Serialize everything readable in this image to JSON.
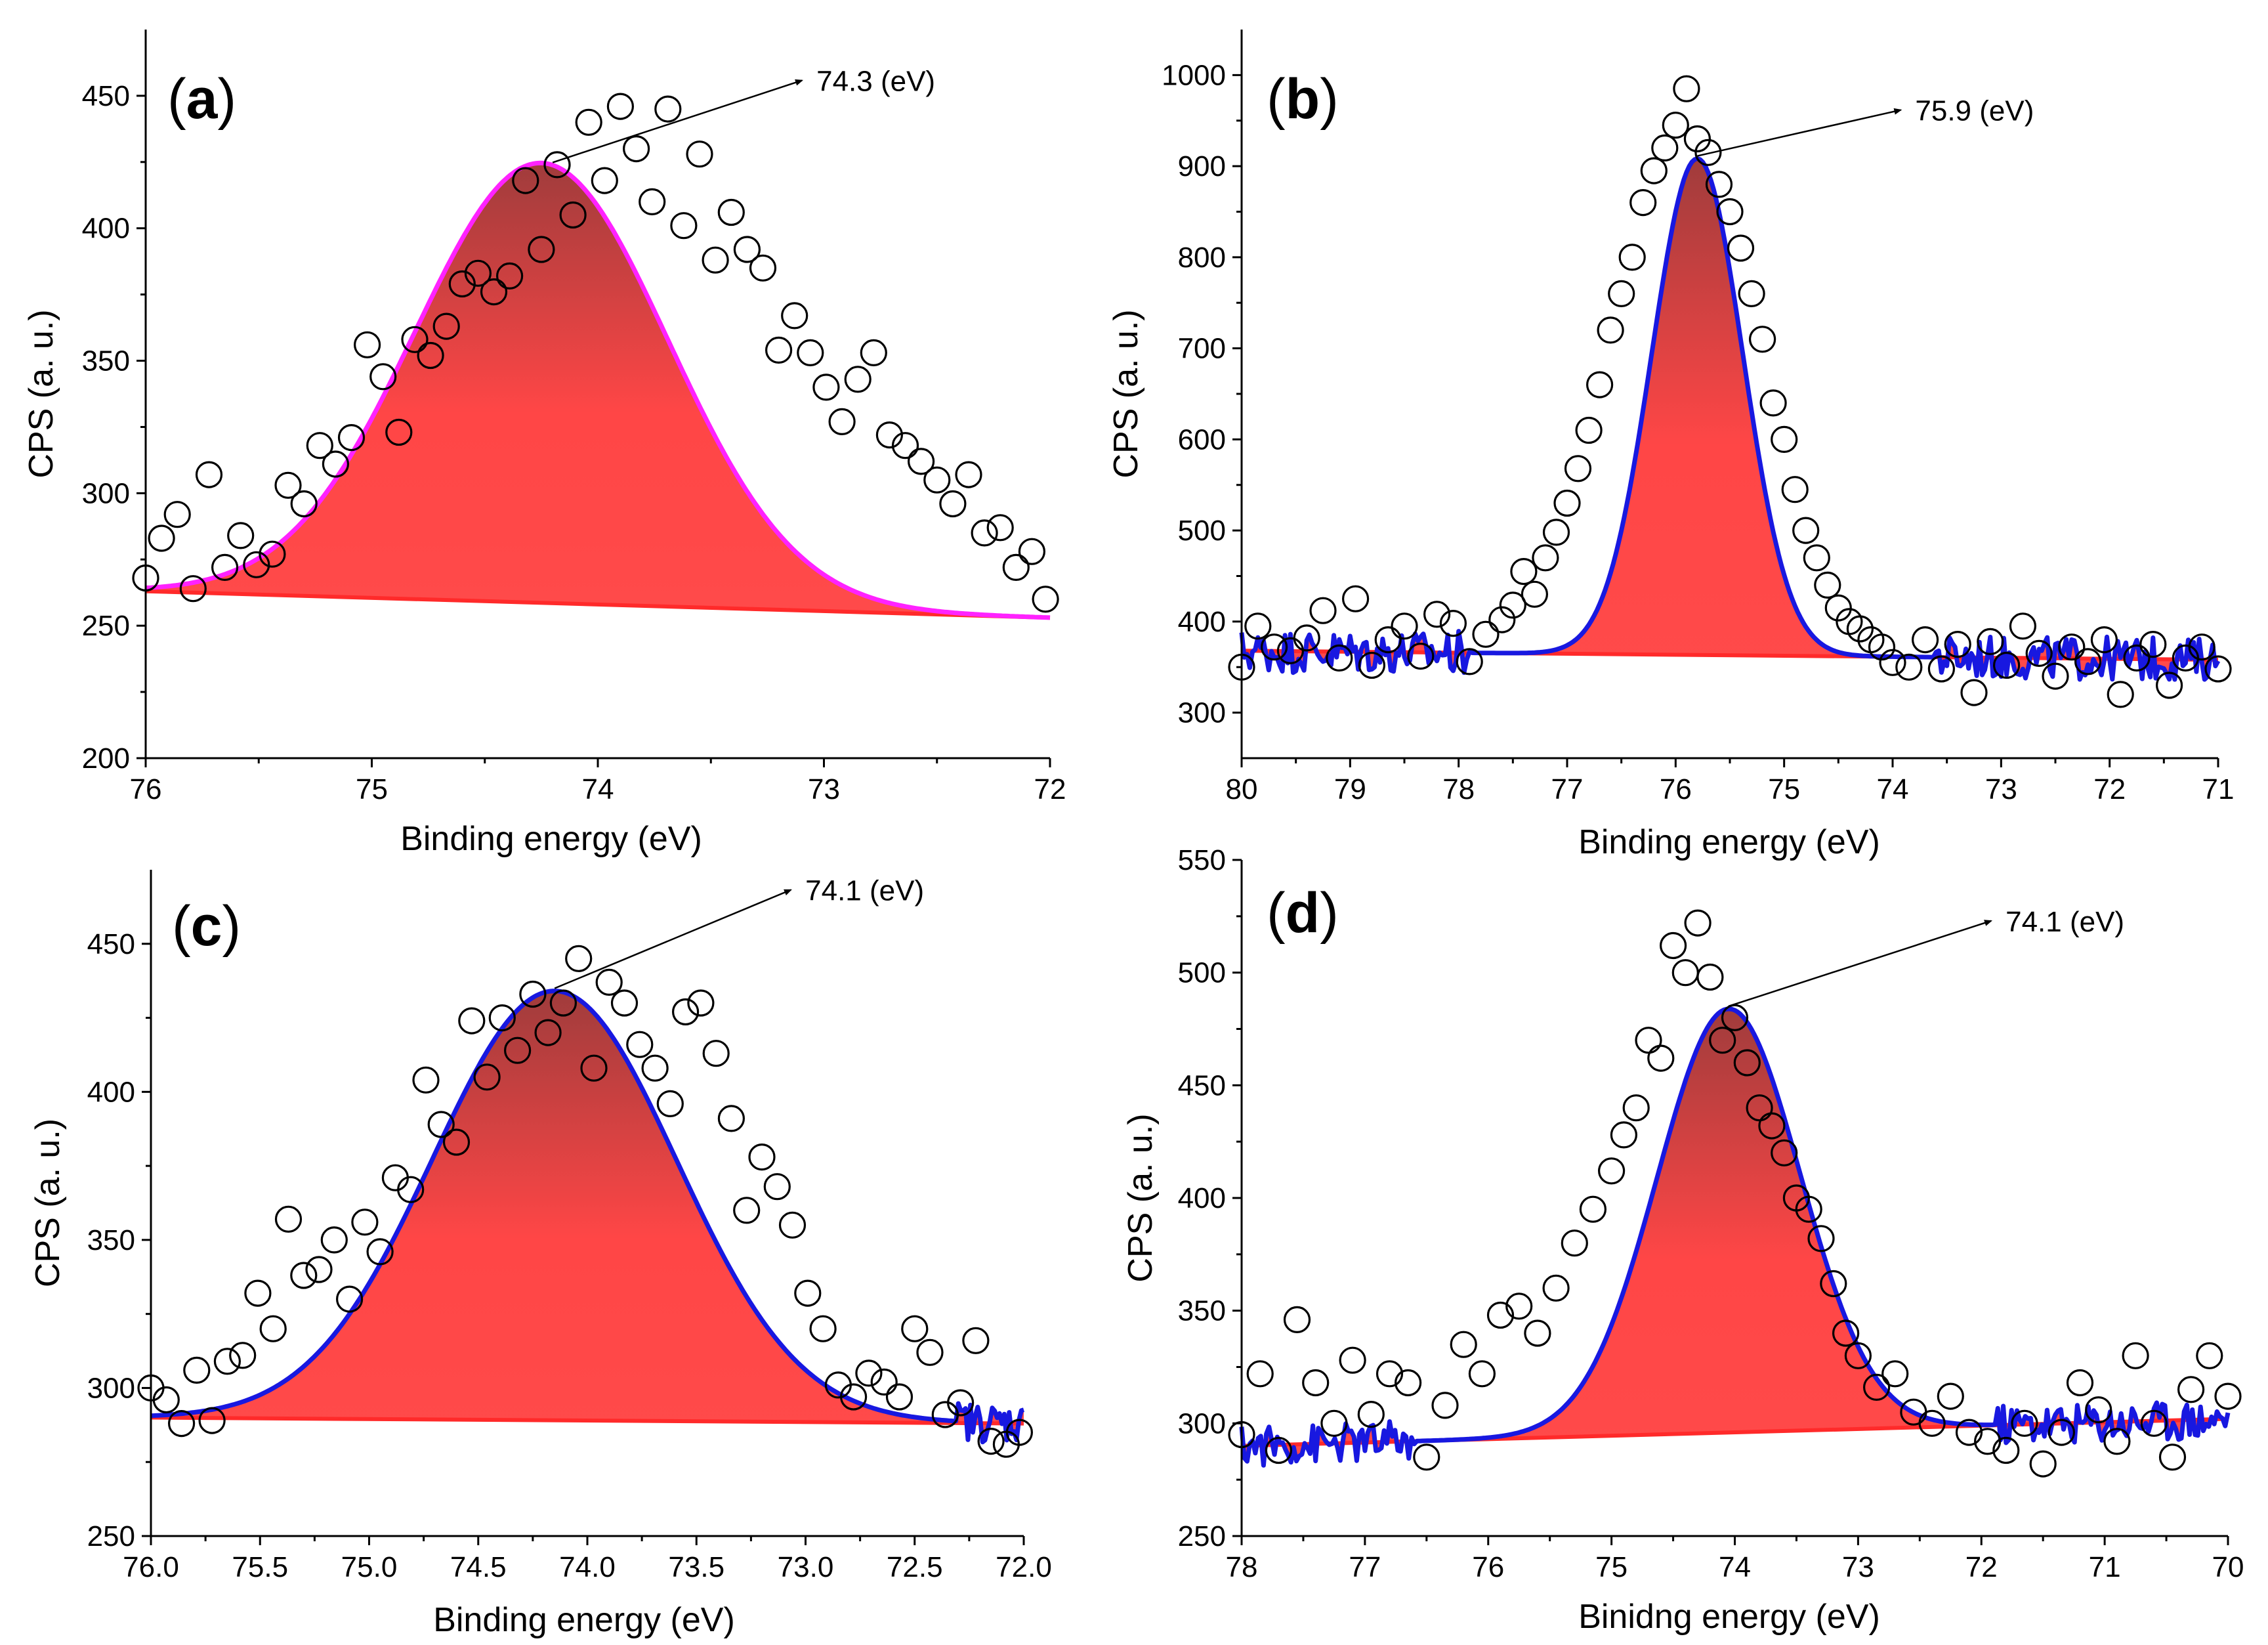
{
  "figure": {
    "panels": [
      "(a)",
      "(b)",
      "(c)",
      "(d)"
    ]
  },
  "colors": {
    "fill_top": "#a03c3c",
    "fill_bottom": "#ff4a4a",
    "baseline": "#ff2a2a",
    "fit_a": "#ff22ff",
    "fit_bcd": "#1818e0",
    "marker": "#000000"
  },
  "chart_data": [
    {
      "type": "scatter",
      "panel": "a",
      "label_letter": "a",
      "title": "",
      "xlabel": "Binding energy (eV)",
      "ylabel": "CPS (a. u.)",
      "xlim": [
        76,
        72
      ],
      "ylim": [
        200,
        475
      ],
      "xticks": [
        76,
        75,
        74,
        73,
        72
      ],
      "xtick_labels": [
        "76",
        "75",
        "74",
        "73",
        "72"
      ],
      "yticks": [
        200,
        250,
        300,
        350,
        400,
        450
      ],
      "ytick_labels": [
        "200",
        "250",
        "300",
        "350",
        "400",
        "450"
      ],
      "annotation": "74.3 (eV)",
      "annotation_x": 74.2,
      "fit_color_key": "fit_a",
      "fit": {
        "center": 74.25,
        "sigma": 0.56,
        "amplitude": 166,
        "baseline_start": 263,
        "baseline_end": 253,
        "noise_until": null,
        "noise_from": null
      },
      "series": [
        {
          "name": "measured",
          "x": [
            76.0,
            75.93,
            75.86,
            75.79,
            75.72,
            75.65,
            75.58,
            75.51,
            75.44,
            75.37,
            75.3,
            75.23,
            75.16,
            75.09,
            75.02,
            74.95,
            74.88,
            74.81,
            74.74,
            74.67,
            74.6,
            74.53,
            74.46,
            74.39,
            74.32,
            74.25,
            74.18,
            74.11,
            74.04,
            73.97,
            73.9,
            73.83,
            73.76,
            73.69,
            73.62,
            73.55,
            73.48,
            73.41,
            73.34,
            73.27,
            73.2,
            73.13,
            73.06,
            72.99,
            72.92,
            72.85,
            72.78,
            72.71,
            72.64,
            72.57,
            72.5,
            72.43,
            72.36,
            72.29,
            72.22,
            72.15,
            72.08,
            72.02
          ],
          "y": [
            268,
            283,
            292,
            264,
            307,
            272,
            284,
            273,
            277,
            303,
            296,
            318,
            311,
            321,
            356,
            344,
            323,
            358,
            352,
            363,
            379,
            383,
            376,
            382,
            418,
            392,
            424,
            405,
            440,
            418,
            446,
            430,
            410,
            445,
            401,
            428,
            388,
            406,
            392,
            385,
            354,
            367,
            353,
            340,
            327,
            343,
            353,
            322,
            318,
            312,
            305,
            296,
            307,
            285,
            287,
            272,
            278,
            260
          ]
        }
      ]
    },
    {
      "type": "scatter",
      "panel": "b",
      "label_letter": "b",
      "title": "",
      "xlabel": "Binding energy (eV)",
      "ylabel": "CPS (a. u.)",
      "xlim": [
        80,
        71
      ],
      "ylim": [
        250,
        1050
      ],
      "xticks": [
        80,
        79,
        78,
        77,
        76,
        75,
        74,
        73,
        72,
        71
      ],
      "xtick_labels": [
        "80",
        "79",
        "78",
        "77",
        "76",
        "75",
        "74",
        "73",
        "72",
        "71"
      ],
      "yticks": [
        300,
        400,
        500,
        600,
        700,
        800,
        900,
        1000
      ],
      "ytick_labels": [
        "300",
        "400",
        "500",
        "600",
        "700",
        "800",
        "900",
        "1000"
      ],
      "annotation": "75.9 (eV)",
      "annotation_x": 75.8,
      "fit_color_key": "fit_bcd",
      "fit": {
        "center": 75.8,
        "sigma": 0.42,
        "amplitude": 545,
        "baseline_start": 368,
        "baseline_end": 358,
        "noise_until": 77.9,
        "noise_from": 73.6
      },
      "series": [
        {
          "name": "measured",
          "x": [
            80.0,
            79.85,
            79.7,
            79.55,
            79.4,
            79.25,
            79.1,
            78.95,
            78.8,
            78.65,
            78.5,
            78.35,
            78.2,
            78.05,
            77.9,
            77.75,
            77.6,
            77.5,
            77.4,
            77.3,
            77.2,
            77.1,
            77.0,
            76.9,
            76.8,
            76.7,
            76.6,
            76.5,
            76.4,
            76.3,
            76.2,
            76.1,
            76.0,
            75.9,
            75.8,
            75.7,
            75.6,
            75.5,
            75.4,
            75.3,
            75.2,
            75.1,
            75.0,
            74.9,
            74.8,
            74.7,
            74.6,
            74.5,
            74.4,
            74.3,
            74.2,
            74.1,
            74.0,
            73.85,
            73.7,
            73.55,
            73.4,
            73.25,
            73.1,
            72.95,
            72.8,
            72.65,
            72.5,
            72.35,
            72.2,
            72.05,
            71.9,
            71.75,
            71.6,
            71.45,
            71.3,
            71.15,
            71.0
          ],
          "y": [
            350,
            395,
            372,
            368,
            382,
            412,
            360,
            425,
            352,
            380,
            395,
            362,
            408,
            398,
            356,
            386,
            402,
            418,
            455,
            430,
            470,
            498,
            530,
            568,
            610,
            660,
            720,
            760,
            800,
            860,
            895,
            920,
            945,
            985,
            930,
            915,
            880,
            850,
            810,
            760,
            710,
            640,
            600,
            545,
            500,
            470,
            440,
            415,
            400,
            392,
            380,
            372,
            355,
            350,
            380,
            348,
            375,
            322,
            378,
            352,
            395,
            365,
            340,
            372,
            356,
            380,
            320,
            360,
            375,
            330,
            360,
            372,
            348
          ]
        }
      ]
    },
    {
      "type": "scatter",
      "panel": "c",
      "label_letter": "c",
      "title": "",
      "xlabel": "Binding energy (eV)",
      "ylabel": "CPS (a. u.)",
      "xlim": [
        76,
        72
      ],
      "ylim": [
        250,
        475
      ],
      "xticks": [
        76,
        75.5,
        75,
        74.5,
        74,
        73.5,
        73,
        72.5,
        72
      ],
      "xtick_labels": [
        "76.0",
        "75.5",
        "75.0",
        "74.5",
        "74.0",
        "73.5",
        "73.0",
        "72.5",
        "72.0"
      ],
      "yticks": [
        250,
        300,
        350,
        400,
        450
      ],
      "ytick_labels": [
        "250",
        "300",
        "350",
        "400",
        "450"
      ],
      "annotation": "74.1 (eV)",
      "annotation_x": 74.15,
      "fit_color_key": "fit_bcd",
      "fit": {
        "center": 74.15,
        "sigma": 0.56,
        "amplitude": 145,
        "baseline_start": 290,
        "baseline_end": 288,
        "noise_until": null,
        "noise_from": 72.3
      },
      "series": [
        {
          "name": "measured",
          "x": [
            76.0,
            75.93,
            75.86,
            75.79,
            75.72,
            75.65,
            75.58,
            75.51,
            75.44,
            75.37,
            75.3,
            75.23,
            75.16,
            75.09,
            75.02,
            74.95,
            74.88,
            74.81,
            74.74,
            74.67,
            74.6,
            74.53,
            74.46,
            74.39,
            74.32,
            74.25,
            74.18,
            74.11,
            74.04,
            73.97,
            73.9,
            73.83,
            73.76,
            73.69,
            73.62,
            73.55,
            73.48,
            73.41,
            73.34,
            73.27,
            73.2,
            73.13,
            73.06,
            72.99,
            72.92,
            72.85,
            72.78,
            72.71,
            72.64,
            72.57,
            72.5,
            72.43,
            72.36,
            72.29,
            72.22,
            72.15,
            72.08,
            72.02
          ],
          "y": [
            300,
            296,
            288,
            306,
            289,
            309,
            311,
            332,
            320,
            357,
            338,
            340,
            350,
            330,
            356,
            346,
            371,
            367,
            404,
            389,
            383,
            424,
            405,
            425,
            414,
            433,
            420,
            430,
            445,
            408,
            437,
            430,
            416,
            408,
            396,
            427,
            430,
            413,
            391,
            360,
            378,
            368,
            355,
            332,
            320,
            301,
            297,
            305,
            302,
            297,
            320,
            312,
            291,
            295,
            316,
            282,
            281,
            285
          ]
        }
      ]
    },
    {
      "type": "scatter",
      "panel": "d",
      "label_letter": "d",
      "title": "",
      "xlabel": "Binidng energy (eV)",
      "ylabel": "CPS (a. u.)",
      "xlim": [
        78,
        70
      ],
      "ylim": [
        250,
        550
      ],
      "xticks": [
        78,
        77,
        76,
        75,
        74,
        73,
        72,
        71,
        70
      ],
      "xtick_labels": [
        "78",
        "77",
        "76",
        "75",
        "74",
        "73",
        "72",
        "71",
        "70"
      ],
      "yticks": [
        250,
        300,
        350,
        400,
        450,
        500,
        550
      ],
      "ytick_labels": [
        "250",
        "300",
        "350",
        "400",
        "450",
        "500",
        "550"
      ],
      "annotation": "74.1 (eV)",
      "annotation_x": 74.05,
      "fit_color_key": "fit_bcd",
      "fit": {
        "center": 74.05,
        "sigma": 0.58,
        "amplitude": 188,
        "baseline_start": 290,
        "baseline_end": 302,
        "noise_until": 76.6,
        "noise_from": 71.9
      },
      "series": [
        {
          "name": "measured",
          "x": [
            78.0,
            77.85,
            77.7,
            77.55,
            77.4,
            77.25,
            77.1,
            76.95,
            76.8,
            76.65,
            76.5,
            76.35,
            76.2,
            76.05,
            75.9,
            75.75,
            75.6,
            75.45,
            75.3,
            75.15,
            75.0,
            74.9,
            74.8,
            74.7,
            74.6,
            74.5,
            74.4,
            74.3,
            74.2,
            74.1,
            74.0,
            73.9,
            73.8,
            73.7,
            73.6,
            73.5,
            73.4,
            73.3,
            73.2,
            73.1,
            73.0,
            72.85,
            72.7,
            72.55,
            72.4,
            72.25,
            72.1,
            71.95,
            71.8,
            71.65,
            71.5,
            71.35,
            71.2,
            71.05,
            70.9,
            70.75,
            70.6,
            70.45,
            70.3,
            70.15,
            70.0
          ],
          "y": [
            295,
            322,
            288,
            346,
            318,
            300,
            328,
            304,
            322,
            318,
            285,
            308,
            335,
            322,
            348,
            352,
            340,
            360,
            380,
            395,
            412,
            428,
            440,
            470,
            462,
            512,
            500,
            522,
            498,
            470,
            480,
            460,
            440,
            432,
            420,
            400,
            395,
            382,
            362,
            340,
            330,
            316,
            322,
            305,
            300,
            312,
            296,
            292,
            288,
            300,
            282,
            296,
            318,
            306,
            292,
            330,
            300,
            285,
            315,
            330,
            312
          ]
        }
      ]
    }
  ]
}
